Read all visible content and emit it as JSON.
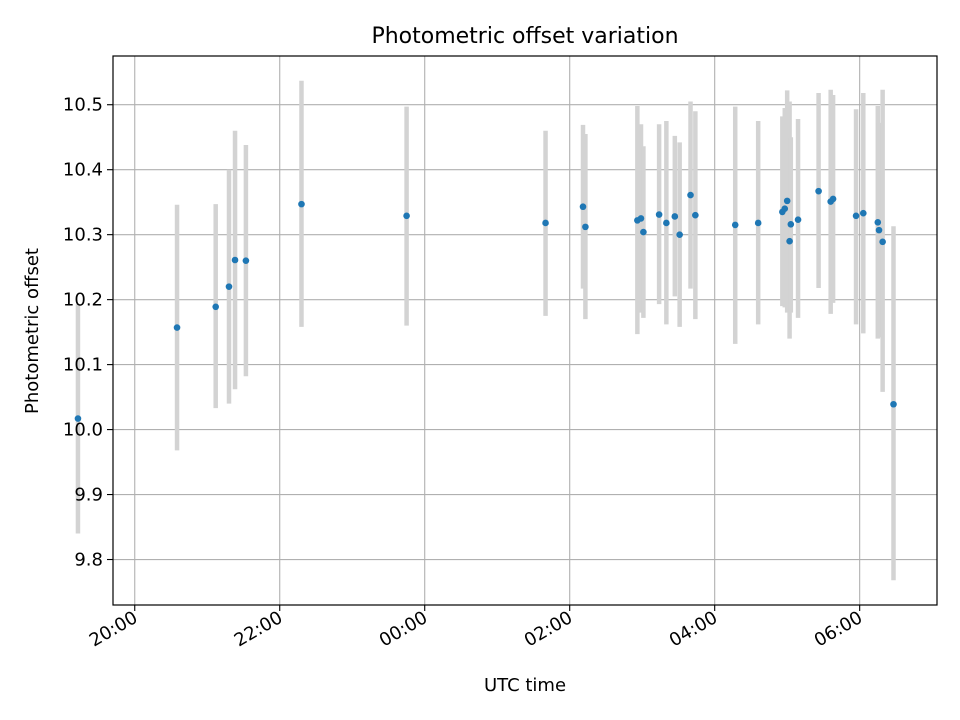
{
  "chart_data": {
    "type": "scatter",
    "title": "Photometric offset variation",
    "xlabel": "UTC time",
    "ylabel": "Photometric offset",
    "x_tick_labels": [
      "20:00",
      "22:00",
      "00:00",
      "02:00",
      "04:00",
      "06:00"
    ],
    "y_tick_labels": [
      "9.8",
      "9.9",
      "10.0",
      "10.1",
      "10.2",
      "10.3",
      "10.4",
      "10.5"
    ],
    "ylim": [
      9.73,
      10.575
    ],
    "xlim": [
      "19:42",
      "07:04"
    ],
    "grid": true,
    "marker_color": "#1f77b4",
    "errorbar_color": "#d3d3d3",
    "points": [
      {
        "time": "19:13",
        "offset": 10.017,
        "error_low": 9.84,
        "error_high": 10.193
      },
      {
        "time": "20:35",
        "offset": 10.157,
        "error_low": 9.968,
        "error_high": 10.346
      },
      {
        "time": "21:07",
        "offset": 10.189,
        "error_low": 10.033,
        "error_high": 10.347
      },
      {
        "time": "21:18",
        "offset": 10.22,
        "error_low": 10.04,
        "error_high": 10.4
      },
      {
        "time": "21:23",
        "offset": 10.261,
        "error_low": 10.062,
        "error_high": 10.46
      },
      {
        "time": "21:32",
        "offset": 10.26,
        "error_low": 10.082,
        "error_high": 10.438
      },
      {
        "time": "22:18",
        "offset": 10.347,
        "error_low": 10.158,
        "error_high": 10.537
      },
      {
        "time": "23:45",
        "offset": 10.329,
        "error_low": 10.16,
        "error_high": 10.497
      },
      {
        "time": "01:40",
        "offset": 10.318,
        "error_low": 10.175,
        "error_high": 10.46
      },
      {
        "time": "02:11",
        "offset": 10.343,
        "error_low": 10.217,
        "error_high": 10.469
      },
      {
        "time": "02:13",
        "offset": 10.312,
        "error_low": 10.17,
        "error_high": 10.455
      },
      {
        "time": "02:56",
        "offset": 10.322,
        "error_low": 10.147,
        "error_high": 10.498
      },
      {
        "time": "02:59",
        "offset": 10.325,
        "error_low": 10.18,
        "error_high": 10.47
      },
      {
        "time": "03:01",
        "offset": 10.304,
        "error_low": 10.172,
        "error_high": 10.436
      },
      {
        "time": "03:14",
        "offset": 10.331,
        "error_low": 10.193,
        "error_high": 10.47
      },
      {
        "time": "03:20",
        "offset": 10.318,
        "error_low": 10.162,
        "error_high": 10.475
      },
      {
        "time": "03:27",
        "offset": 10.328,
        "error_low": 10.205,
        "error_high": 10.452
      },
      {
        "time": "03:31",
        "offset": 10.3,
        "error_low": 10.158,
        "error_high": 10.442
      },
      {
        "time": "03:40",
        "offset": 10.361,
        "error_low": 10.217,
        "error_high": 10.505
      },
      {
        "time": "03:44",
        "offset": 10.33,
        "error_low": 10.17,
        "error_high": 10.49
      },
      {
        "time": "04:17",
        "offset": 10.315,
        "error_low": 10.132,
        "error_high": 10.497
      },
      {
        "time": "04:36",
        "offset": 10.318,
        "error_low": 10.162,
        "error_high": 10.475
      },
      {
        "time": "04:56",
        "offset": 10.335,
        "error_low": 10.19,
        "error_high": 10.482
      },
      {
        "time": "04:58",
        "offset": 10.34,
        "error_low": 10.188,
        "error_high": 10.495
      },
      {
        "time": "05:00",
        "offset": 10.352,
        "error_low": 10.18,
        "error_high": 10.522
      },
      {
        "time": "05:02",
        "offset": 10.29,
        "error_low": 10.14,
        "error_high": 10.505
      },
      {
        "time": "05:03",
        "offset": 10.316,
        "error_low": 10.18,
        "error_high": 10.45
      },
      {
        "time": "05:09",
        "offset": 10.323,
        "error_low": 10.172,
        "error_high": 10.478
      },
      {
        "time": "05:26",
        "offset": 10.367,
        "error_low": 10.218,
        "error_high": 10.518
      },
      {
        "time": "05:36",
        "offset": 10.351,
        "error_low": 10.178,
        "error_high": 10.523
      },
      {
        "time": "05:38",
        "offset": 10.355,
        "error_low": 10.195,
        "error_high": 10.515
      },
      {
        "time": "05:57",
        "offset": 10.329,
        "error_low": 10.162,
        "error_high": 10.493
      },
      {
        "time": "06:03",
        "offset": 10.333,
        "error_low": 10.148,
        "error_high": 10.518
      },
      {
        "time": "06:15",
        "offset": 10.319,
        "error_low": 10.14,
        "error_high": 10.498
      },
      {
        "time": "06:16",
        "offset": 10.307,
        "error_low": 10.142,
        "error_high": 10.472
      },
      {
        "time": "06:19",
        "offset": 10.289,
        "error_low": 10.058,
        "error_high": 10.523
      },
      {
        "time": "06:28",
        "offset": 10.039,
        "error_low": 9.768,
        "error_high": 10.313
      }
    ]
  }
}
